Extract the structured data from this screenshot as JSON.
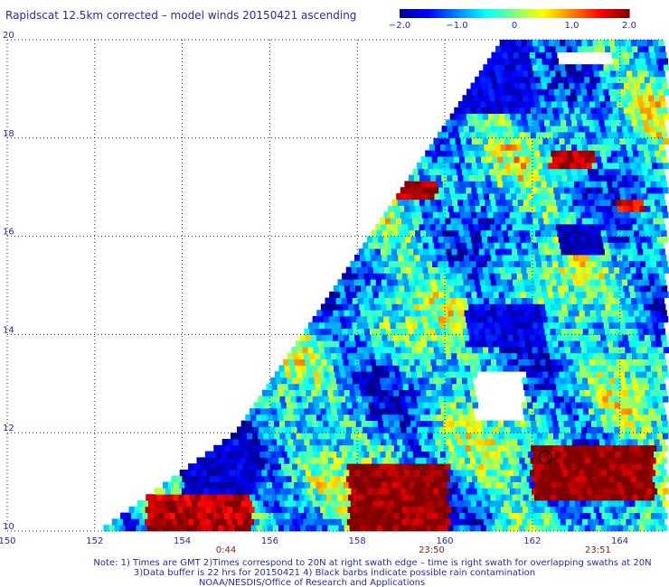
{
  "chart_data": {
    "type": "heatmap",
    "title": "Rapidscat 12.5km corrected – model winds 20150421 ascending",
    "colorbar": {
      "range": [
        -2.0,
        2.0
      ],
      "ticks": [
        "-2.0",
        "-1.0",
        "0",
        "1.0",
        "2.0"
      ],
      "colors": [
        "#00008f",
        "#0000ff",
        "#0080ff",
        "#00ffff",
        "#80ff80",
        "#ffff00",
        "#ff8000",
        "#ff0000",
        "#800000"
      ]
    },
    "xaxis": {
      "range": [
        150,
        165
      ],
      "ticks": [
        "150",
        "152",
        "154",
        "156",
        "158",
        "160",
        "162",
        "164"
      ]
    },
    "yaxis": {
      "range": [
        10,
        20
      ],
      "ticks": [
        "10",
        "12",
        "14",
        "16",
        "18",
        "20"
      ]
    },
    "grid": true,
    "swath_times": [
      {
        "lon": 155,
        "label": "0:44"
      },
      {
        "lon": 159.7,
        "label": "23:50"
      },
      {
        "lon": 163.5,
        "label": "23:51"
      }
    ],
    "swath_edge": [
      [
        152.1,
        10
      ],
      [
        155.2,
        12
      ],
      [
        158.5,
        16.3
      ],
      [
        161.3,
        20
      ]
    ],
    "data_gaps": [
      {
        "lat": [
          10,
          20
        ],
        "lon": [
          150,
          152.1
        ]
      },
      {
        "lat": [
          12.2,
          13.2
        ],
        "lon": [
          160.7,
          161.8
        ]
      },
      {
        "lat": [
          19.5,
          19.8
        ],
        "lon": [
          162.6,
          163.8
        ]
      }
    ],
    "high_regions": [
      {
        "lat": [
          10,
          11.4
        ],
        "lon": [
          157.8,
          160.1
        ],
        "value": 2.0
      },
      {
        "lat": [
          10.6,
          11.8
        ],
        "lon": [
          162,
          164.8
        ],
        "value": 2.0
      },
      {
        "lat": [
          10,
          10.8
        ],
        "lon": [
          153.2,
          155.6
        ],
        "value": 1.8
      },
      {
        "lat": [
          16.7,
          17.1
        ],
        "lon": [
          158.8,
          159.8
        ],
        "value": 1.9
      },
      {
        "lat": [
          17.4,
          17.7
        ],
        "lon": [
          162.4,
          163.4
        ],
        "value": 1.8
      },
      {
        "lat": [
          16.5,
          16.8
        ],
        "lon": [
          163.9,
          164.6
        ],
        "value": 1.6
      }
    ],
    "low_regions": [
      {
        "lat": [
          18.5,
          20
        ],
        "lon": [
          158.5,
          162
        ],
        "value": -1.6
      },
      {
        "lat": [
          10.8,
          11.8
        ],
        "lon": [
          154,
          155.7
        ],
        "value": -1.7
      },
      {
        "lat": [
          13.7,
          14.6
        ],
        "lon": [
          160.5,
          162.3
        ],
        "value": -1.6
      },
      {
        "lat": [
          15.6,
          16.3
        ],
        "lon": [
          162.6,
          163.6
        ],
        "value": -1.8
      }
    ],
    "rain_flags": [
      {
        "lon": 162.3,
        "lat": 11.5
      }
    ]
  },
  "notes": {
    "line1": "Note: 1) Times are GMT 2)Times correspond to 20N at right swath edge – time is right swath for overlapping swaths at 20N",
    "line2": "3)Data buffer is 22 hrs for 20150421 4) Black barbs indicate possible rain contamination",
    "line3": "NOAA/NESDIS/Office of Research and Applications"
  }
}
